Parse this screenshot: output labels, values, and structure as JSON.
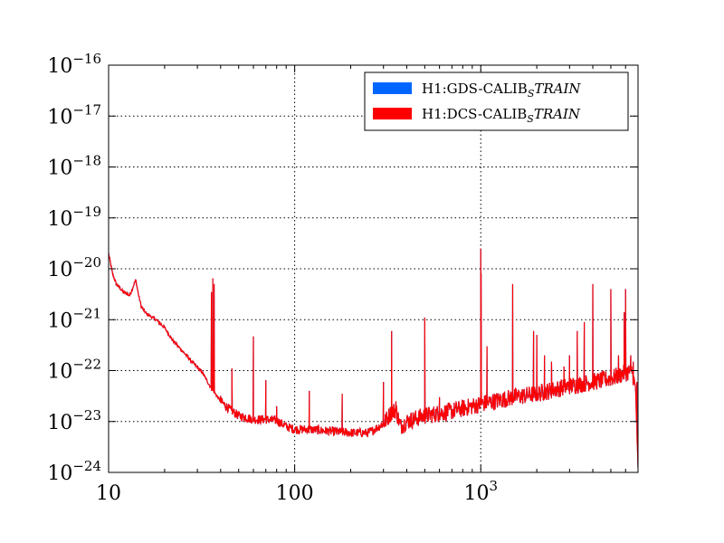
{
  "chart_data": {
    "type": "line",
    "xscale": "log",
    "yscale": "log",
    "xlim": [
      10,
      7000
    ],
    "ylim": [
      1e-24,
      1e-16
    ],
    "grid": true,
    "legend_position": "top-right",
    "x_ticks": [
      {
        "value": 10,
        "base": "10",
        "exp": ""
      },
      {
        "value": 100,
        "base": "100",
        "exp": ""
      },
      {
        "value": 1000,
        "base": "10",
        "exp": "3"
      }
    ],
    "y_ticks": [
      {
        "value": 1e-24,
        "base": "10",
        "exp": "−24"
      },
      {
        "value": 1e-23,
        "base": "10",
        "exp": "−23"
      },
      {
        "value": 1e-22,
        "base": "10",
        "exp": "−22"
      },
      {
        "value": 1e-21,
        "base": "10",
        "exp": "−21"
      },
      {
        "value": 1e-20,
        "base": "10",
        "exp": "−20"
      },
      {
        "value": 1e-19,
        "base": "10",
        "exp": "−19"
      },
      {
        "value": 1e-18,
        "base": "10",
        "exp": "−18"
      },
      {
        "value": 1e-17,
        "base": "10",
        "exp": "−17"
      },
      {
        "value": 1e-16,
        "base": "10",
        "exp": "−16"
      }
    ],
    "series": [
      {
        "name": "H1:GDS-CALIB_STRAIN",
        "name_parts": {
          "prefix": "H1:GDS-CALIB",
          "sub": "S",
          "suffix": "TRAIN"
        },
        "color": "#0066ff"
      },
      {
        "name": "H1:DCS-CALIB_STRAIN",
        "name_parts": {
          "prefix": "H1:DCS-CALIB",
          "sub": "S",
          "suffix": "TRAIN"
        },
        "color": "#ff0000"
      }
    ],
    "curve": {
      "baseline": [
        [
          10,
          2e-20
        ],
        [
          10.5,
          8e-21
        ],
        [
          11,
          5e-21
        ],
        [
          12,
          3.5e-21
        ],
        [
          13,
          3e-21
        ],
        [
          13.7,
          5e-21
        ],
        [
          14,
          6e-21
        ],
        [
          14.5,
          3e-21
        ],
        [
          15,
          1.8e-21
        ],
        [
          16,
          1.3e-21
        ],
        [
          18,
          1e-21
        ],
        [
          20,
          7e-22
        ],
        [
          22,
          4e-22
        ],
        [
          25,
          2.4e-22
        ],
        [
          28,
          1.5e-22
        ],
        [
          32,
          9e-23
        ],
        [
          35,
          5e-23
        ],
        [
          40,
          2.5e-23
        ],
        [
          45,
          1.7e-23
        ],
        [
          50,
          1.3e-23
        ],
        [
          60,
          1.1e-23
        ],
        [
          70,
          1.1e-23
        ],
        [
          80,
          1.05e-23
        ],
        [
          90,
          8e-24
        ],
        [
          100,
          7e-24
        ],
        [
          120,
          7e-24
        ],
        [
          150,
          6.5e-24
        ],
        [
          200,
          6e-24
        ],
        [
          250,
          6e-24
        ],
        [
          300,
          9e-24
        ],
        [
          330,
          1.5e-23
        ],
        [
          350,
          1.7e-23
        ],
        [
          370,
          8e-24
        ],
        [
          400,
          1e-23
        ],
        [
          500,
          1.3e-23
        ],
        [
          700,
          1.6e-23
        ],
        [
          900,
          2e-23
        ],
        [
          1000,
          2.2e-23
        ],
        [
          1500,
          3e-23
        ],
        [
          2000,
          3.5e-23
        ],
        [
          3000,
          5e-23
        ],
        [
          4000,
          6e-23
        ],
        [
          5000,
          7e-23
        ],
        [
          6000,
          9e-23
        ],
        [
          6500,
          1e-22
        ],
        [
          6800,
          4e-23
        ],
        [
          7000,
          1e-24
        ]
      ],
      "peaks": [
        [
          35.7,
          3.5e-21
        ],
        [
          36.3,
          6.5e-21
        ],
        [
          36.9,
          5e-21
        ],
        [
          40,
          3.2e-23
        ],
        [
          46,
          1.1e-22
        ],
        [
          60,
          4.7e-22
        ],
        [
          70,
          6.5e-23
        ],
        [
          80,
          2e-23
        ],
        [
          119.9,
          4e-23
        ],
        [
          180,
          3.5e-23
        ],
        [
          300,
          6e-23
        ],
        [
          331.9,
          6e-22
        ],
        [
          350,
          2.5e-23
        ],
        [
          500,
          1.1e-21
        ],
        [
          600,
          3e-23
        ],
        [
          1000,
          2.5e-20
        ],
        [
          1004,
          8e-21
        ],
        [
          1080,
          3e-22
        ],
        [
          1484,
          5e-21
        ],
        [
          1922,
          6e-22
        ],
        [
          2000,
          5e-22
        ],
        [
          2200,
          2e-22
        ],
        [
          2400,
          1.5e-22
        ],
        [
          2800,
          1.2e-22
        ],
        [
          3000,
          2e-22
        ],
        [
          3300,
          6e-22
        ],
        [
          3600,
          9e-22
        ],
        [
          4000,
          5e-21
        ],
        [
          5000,
          4e-21
        ],
        [
          5500,
          2e-22
        ],
        [
          5900,
          1.4e-21
        ],
        [
          6000,
          4e-21
        ],
        [
          6400,
          2e-22
        ],
        [
          6600,
          1.5e-22
        ],
        [
          6900,
          6e-23
        ]
      ]
    }
  }
}
